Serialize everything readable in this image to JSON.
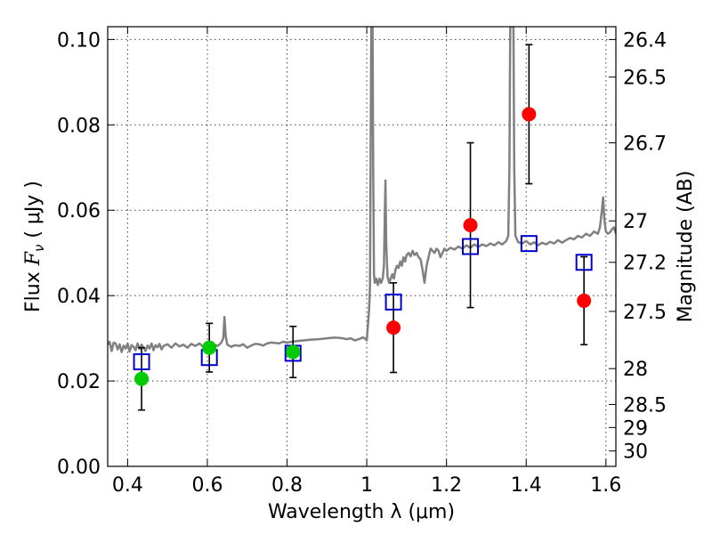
{
  "chart_data": {
    "type": "scatter",
    "xlabel": "Wavelength  λ (μm)",
    "ylabel_text": "Flux ",
    "ylabel_symbol": "F",
    "ylabel_sub": "ν",
    "ylabel_unit": " ( μJy )",
    "y2label": "Magnitude (AB)",
    "xlim": [
      0.35,
      1.625
    ],
    "ylim": [
      0.0,
      0.103
    ],
    "grid": true,
    "x_ticks": [
      {
        "v": 0.4,
        "label": "0.4"
      },
      {
        "v": 0.6,
        "label": "0.6"
      },
      {
        "v": 0.8,
        "label": "0.8"
      },
      {
        "v": 1.0,
        "label": "1"
      },
      {
        "v": 1.2,
        "label": "1.2"
      },
      {
        "v": 1.4,
        "label": "1.4"
      },
      {
        "v": 1.6,
        "label": "1.6"
      }
    ],
    "y_ticks": [
      {
        "v": 0.0,
        "label": "0.00"
      },
      {
        "v": 0.02,
        "label": "0.02"
      },
      {
        "v": 0.04,
        "label": "0.04"
      },
      {
        "v": 0.06,
        "label": "0.06"
      },
      {
        "v": 0.08,
        "label": "0.08"
      },
      {
        "v": 0.1,
        "label": "0.10"
      }
    ],
    "y2_ticks": [
      {
        "flux": 0.1,
        "label": "26.4"
      },
      {
        "flux": 0.0912,
        "label": "26.5"
      },
      {
        "flux": 0.0758,
        "label": "26.7"
      },
      {
        "flux": 0.0575,
        "label": "27"
      },
      {
        "flux": 0.0478,
        "label": "27.2"
      },
      {
        "flux": 0.0363,
        "label": "27.5"
      },
      {
        "flux": 0.0229,
        "label": "28"
      },
      {
        "flux": 0.0145,
        "label": "28.5"
      },
      {
        "flux": 0.0091,
        "label": "29"
      },
      {
        "flux": 0.0036,
        "label": "30"
      }
    ],
    "model_spectrum": {
      "color": "#808080",
      "points": [
        [
          0.35,
          0.0285
        ],
        [
          0.355,
          0.0292
        ],
        [
          0.36,
          0.027
        ],
        [
          0.365,
          0.029
        ],
        [
          0.37,
          0.0288
        ],
        [
          0.375,
          0.0274
        ],
        [
          0.38,
          0.0286
        ],
        [
          0.385,
          0.0268
        ],
        [
          0.39,
          0.0283
        ],
        [
          0.395,
          0.0276
        ],
        [
          0.4,
          0.0288
        ],
        [
          0.405,
          0.0269
        ],
        [
          0.41,
          0.0284
        ],
        [
          0.415,
          0.028
        ],
        [
          0.42,
          0.0272
        ],
        [
          0.425,
          0.0288
        ],
        [
          0.43,
          0.0275
        ],
        [
          0.435,
          0.0285
        ],
        [
          0.44,
          0.0278
        ],
        [
          0.445,
          0.027
        ],
        [
          0.45,
          0.0283
        ],
        [
          0.455,
          0.0276
        ],
        [
          0.46,
          0.0288
        ],
        [
          0.465,
          0.0272
        ],
        [
          0.47,
          0.0284
        ],
        [
          0.475,
          0.0279
        ],
        [
          0.48,
          0.0287
        ],
        [
          0.485,
          0.0274
        ],
        [
          0.49,
          0.0282
        ],
        [
          0.5,
          0.0286
        ],
        [
          0.51,
          0.0278
        ],
        [
          0.52,
          0.0288
        ],
        [
          0.53,
          0.0281
        ],
        [
          0.54,
          0.0285
        ],
        [
          0.55,
          0.0278
        ],
        [
          0.56,
          0.0287
        ],
        [
          0.57,
          0.0282
        ],
        [
          0.58,
          0.0288
        ],
        [
          0.59,
          0.028
        ],
        [
          0.6,
          0.0286
        ],
        [
          0.61,
          0.0285
        ],
        [
          0.615,
          0.0286
        ],
        [
          0.625,
          0.0282
        ],
        [
          0.63,
          0.0285
        ],
        [
          0.635,
          0.029
        ],
        [
          0.64,
          0.03
        ],
        [
          0.643,
          0.035
        ],
        [
          0.646,
          0.0305
        ],
        [
          0.65,
          0.0285
        ],
        [
          0.66,
          0.028
        ],
        [
          0.67,
          0.0284
        ],
        [
          0.68,
          0.0282
        ],
        [
          0.69,
          0.0286
        ],
        [
          0.7,
          0.0278
        ],
        [
          0.71,
          0.0283
        ],
        [
          0.72,
          0.0287
        ],
        [
          0.73,
          0.0286
        ],
        [
          0.74,
          0.0283
        ],
        [
          0.75,
          0.0288
        ],
        [
          0.76,
          0.029
        ],
        [
          0.77,
          0.0289
        ],
        [
          0.78,
          0.0288
        ],
        [
          0.79,
          0.0292
        ],
        [
          0.8,
          0.029
        ],
        [
          0.82,
          0.0293
        ],
        [
          0.84,
          0.0295
        ],
        [
          0.86,
          0.0297
        ],
        [
          0.88,
          0.0298
        ],
        [
          0.9,
          0.03
        ],
        [
          0.92,
          0.0302
        ],
        [
          0.94,
          0.03
        ],
        [
          0.95,
          0.0298
        ],
        [
          0.96,
          0.03
        ],
        [
          0.97,
          0.0295
        ],
        [
          0.98,
          0.0298
        ],
        [
          0.99,
          0.0302
        ],
        [
          0.995,
          0.03
        ],
        [
          1.0,
          0.0295
        ],
        [
          1.003,
          0.033
        ],
        [
          1.006,
          0.037
        ],
        [
          1.008,
          0.042
        ],
        [
          1.01,
          0.08
        ],
        [
          1.0115,
          0.103
        ],
        [
          1.0145,
          0.103
        ],
        [
          1.016,
          0.07
        ],
        [
          1.018,
          0.045
        ],
        [
          1.02,
          0.043
        ],
        [
          1.024,
          0.044
        ],
        [
          1.028,
          0.0425
        ],
        [
          1.032,
          0.044
        ],
        [
          1.036,
          0.043
        ],
        [
          1.04,
          0.044
        ],
        [
          1.043,
          0.047
        ],
        [
          1.045,
          0.058
        ],
        [
          1.047,
          0.067
        ],
        [
          1.049,
          0.052
        ],
        [
          1.052,
          0.0445
        ],
        [
          1.056,
          0.043
        ],
        [
          1.06,
          0.044
        ],
        [
          1.064,
          0.045
        ],
        [
          1.068,
          0.044
        ],
        [
          1.072,
          0.046
        ],
        [
          1.076,
          0.047
        ],
        [
          1.08,
          0.0465
        ],
        [
          1.084,
          0.048
        ],
        [
          1.088,
          0.047
        ],
        [
          1.092,
          0.049
        ],
        [
          1.096,
          0.048
        ],
        [
          1.1,
          0.0495
        ],
        [
          1.105,
          0.05
        ],
        [
          1.11,
          0.0492
        ],
        [
          1.115,
          0.0505
        ],
        [
          1.12,
          0.0495
        ],
        [
          1.125,
          0.05
        ],
        [
          1.13,
          0.049
        ],
        [
          1.135,
          0.0485
        ],
        [
          1.14,
          0.046
        ],
        [
          1.145,
          0.043
        ],
        [
          1.15,
          0.047
        ],
        [
          1.155,
          0.049
        ],
        [
          1.16,
          0.051
        ],
        [
          1.165,
          0.0505
        ],
        [
          1.17,
          0.05
        ],
        [
          1.175,
          0.051
        ],
        [
          1.18,
          0.0505
        ],
        [
          1.185,
          0.049
        ],
        [
          1.19,
          0.05
        ],
        [
          1.195,
          0.051
        ],
        [
          1.2,
          0.0505
        ],
        [
          1.21,
          0.0512
        ],
        [
          1.22,
          0.0508
        ],
        [
          1.23,
          0.0515
        ],
        [
          1.24,
          0.051
        ],
        [
          1.25,
          0.0518
        ],
        [
          1.26,
          0.0512
        ],
        [
          1.27,
          0.052
        ],
        [
          1.28,
          0.0514
        ],
        [
          1.29,
          0.052
        ],
        [
          1.3,
          0.0516
        ],
        [
          1.31,
          0.0522
        ],
        [
          1.32,
          0.0518
        ],
        [
          1.33,
          0.0525
        ],
        [
          1.34,
          0.052
        ],
        [
          1.35,
          0.0528
        ],
        [
          1.355,
          0.054
        ],
        [
          1.358,
          0.07
        ],
        [
          1.36,
          0.103
        ],
        [
          1.368,
          0.103
        ],
        [
          1.37,
          0.07
        ],
        [
          1.373,
          0.054
        ],
        [
          1.38,
          0.0525
        ],
        [
          1.39,
          0.0522
        ],
        [
          1.4,
          0.0528
        ],
        [
          1.41,
          0.052
        ],
        [
          1.42,
          0.0525
        ],
        [
          1.43,
          0.0518
        ],
        [
          1.44,
          0.0524
        ],
        [
          1.45,
          0.052
        ],
        [
          1.46,
          0.0526
        ],
        [
          1.47,
          0.0522
        ],
        [
          1.48,
          0.053
        ],
        [
          1.49,
          0.0524
        ],
        [
          1.5,
          0.053
        ],
        [
          1.51,
          0.0535
        ],
        [
          1.52,
          0.0532
        ],
        [
          1.53,
          0.054
        ],
        [
          1.54,
          0.0536
        ],
        [
          1.55,
          0.0545
        ],
        [
          1.56,
          0.054
        ],
        [
          1.57,
          0.055
        ],
        [
          1.58,
          0.0545
        ],
        [
          1.585,
          0.056
        ],
        [
          1.59,
          0.06
        ],
        [
          1.593,
          0.063
        ],
        [
          1.596,
          0.058
        ],
        [
          1.6,
          0.055
        ],
        [
          1.605,
          0.0545
        ],
        [
          1.61,
          0.0548
        ],
        [
          1.615,
          0.0555
        ],
        [
          1.62,
          0.056
        ],
        [
          1.625,
          0.0545
        ]
      ]
    },
    "series": [
      {
        "marker": "square-open",
        "color": "#0000cc",
        "points": [
          {
            "x": 0.435,
            "y": 0.0245
          },
          {
            "x": 0.605,
            "y": 0.0255
          },
          {
            "x": 0.815,
            "y": 0.0265
          },
          {
            "x": 1.067,
            "y": 0.0385
          },
          {
            "x": 1.26,
            "y": 0.0515
          },
          {
            "x": 1.407,
            "y": 0.0522
          },
          {
            "x": 1.545,
            "y": 0.0478
          }
        ]
      },
      {
        "marker": "circle-filled",
        "color": "#00cc00",
        "points": [
          {
            "x": 0.435,
            "y": 0.0205,
            "err": 0.0073
          },
          {
            "x": 0.605,
            "y": 0.0278,
            "err": 0.0057
          },
          {
            "x": 0.815,
            "y": 0.0268,
            "err": 0.006
          }
        ]
      },
      {
        "marker": "circle-filled",
        "color": "#ff0000",
        "points": [
          {
            "x": 1.067,
            "y": 0.0325,
            "err": 0.0105
          },
          {
            "x": 1.26,
            "y": 0.0565,
            "err": 0.0193
          },
          {
            "x": 1.407,
            "y": 0.0825,
            "err": 0.0163
          },
          {
            "x": 1.545,
            "y": 0.0388,
            "err": 0.0103
          }
        ]
      }
    ]
  }
}
